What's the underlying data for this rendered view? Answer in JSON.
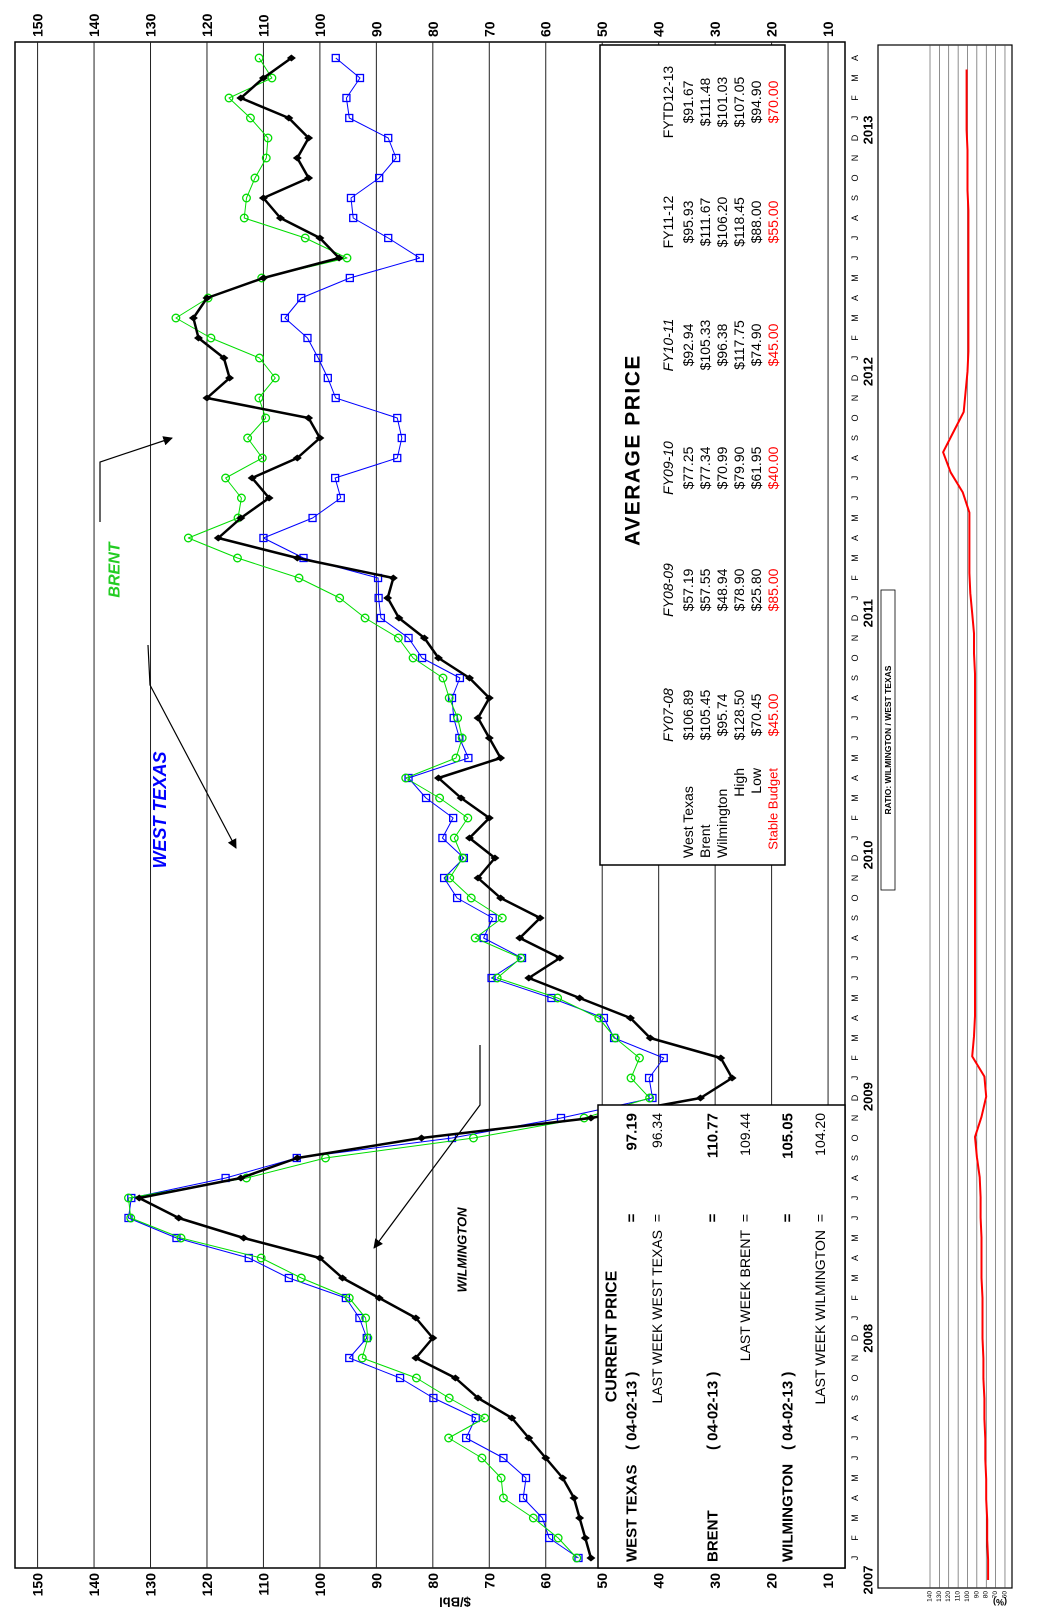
{
  "chart_data": [
    {
      "type": "line",
      "y_label": "$/Bbl",
      "categories": [
        "J",
        "F",
        "M",
        "A",
        "M",
        "J",
        "J",
        "A",
        "S",
        "O",
        "N",
        "D",
        "J",
        "F",
        "M",
        "A",
        "M",
        "J",
        "J",
        "A",
        "S",
        "O",
        "N",
        "D",
        "J",
        "F",
        "M",
        "A",
        "M",
        "J",
        "J",
        "A",
        "S",
        "O",
        "N",
        "D",
        "J",
        "F",
        "M",
        "A",
        "M",
        "J",
        "J",
        "A",
        "S",
        "O",
        "N",
        "D",
        "J",
        "F",
        "M",
        "A",
        "M",
        "J",
        "J",
        "A",
        "S",
        "O",
        "N",
        "D",
        "J",
        "F",
        "M",
        "A",
        "M",
        "J",
        "J",
        "A",
        "S",
        "O",
        "N",
        "D",
        "J",
        "F",
        "M",
        "A"
      ],
      "ylim": [
        7,
        154
      ],
      "yticks": [
        10,
        20,
        30,
        40,
        50,
        60,
        70,
        80,
        90,
        100,
        110,
        120,
        130,
        140,
        150
      ],
      "grid": true,
      "series": [
        {
          "name": "WEST TEXAS",
          "color": "#0000ff",
          "marker": "square",
          "values": [
            54.2,
            59.4,
            60.6,
            64.0,
            63.5,
            67.5,
            74.1,
            72.4,
            79.9,
            85.8,
            94.8,
            91.7,
            93.0,
            95.4,
            105.5,
            112.6,
            125.4,
            133.9,
            133.4,
            116.7,
            104.1,
            76.6,
            57.3,
            41.1,
            41.7,
            39.1,
            47.9,
            49.7,
            59.0,
            69.6,
            64.2,
            71.0,
            69.4,
            75.7,
            78.0,
            74.5,
            78.3,
            76.4,
            81.2,
            84.3,
            73.7,
            75.3,
            76.3,
            76.6,
            75.2,
            81.9,
            84.3,
            89.2,
            89.6,
            89.7,
            102.9,
            110.0,
            101.3,
            96.3,
            97.3,
            86.3,
            85.5,
            86.3,
            97.2,
            98.6,
            100.3,
            102.2,
            106.2,
            103.3,
            94.7,
            82.3,
            87.9,
            94.1,
            94.5,
            89.5,
            86.5,
            87.9,
            94.8,
            95.3,
            92.9,
            97.19
          ]
        },
        {
          "name": "BRENT",
          "color": "#00dd00",
          "marker": "circle",
          "values": [
            54.5,
            57.8,
            62.2,
            67.5,
            67.9,
            71.3,
            77.2,
            70.8,
            77.1,
            82.9,
            92.5,
            91.5,
            91.9,
            94.8,
            103.3,
            110.4,
            124.6,
            133.5,
            133.9,
            113.0,
            99.0,
            72.8,
            53.2,
            41.6,
            44.9,
            43.4,
            47.7,
            50.6,
            57.9,
            68.6,
            64.4,
            72.5,
            67.7,
            73.2,
            77.0,
            74.7,
            76.2,
            73.8,
            78.8,
            84.8,
            75.9,
            74.8,
            75.6,
            77.1,
            78.2,
            83.5,
            86.1,
            92.0,
            96.5,
            103.7,
            114.6,
            123.3,
            114.5,
            113.9,
            116.7,
            110.2,
            112.8,
            109.6,
            110.8,
            107.9,
            110.7,
            119.3,
            125.5,
            119.8,
            110.3,
            95.2,
            102.6,
            113.4,
            113.0,
            111.5,
            109.5,
            109.2,
            112.3,
            116.1,
            108.5,
            110.77
          ]
        },
        {
          "name": "WILMINGTON",
          "color": "#000000",
          "marker": "diamond",
          "values": [
            52,
            53,
            54,
            55,
            57,
            60,
            63,
            66,
            72,
            76,
            83,
            80,
            83,
            89.5,
            96,
            100,
            113.5,
            125,
            132,
            114,
            104,
            82,
            52,
            32.6,
            27,
            29,
            41.5,
            45,
            54,
            63,
            57.5,
            64.6,
            61,
            68,
            72,
            69,
            73.5,
            70,
            75,
            79,
            68,
            70,
            72,
            70,
            73.5,
            79,
            81.5,
            86,
            88,
            87,
            104,
            118,
            114,
            109,
            112,
            104,
            100,
            102,
            120,
            116,
            117,
            121.5,
            122.4,
            120,
            110,
            96.6,
            100,
            107,
            110,
            102,
            104,
            102,
            105.5,
            114,
            110,
            105.05
          ]
        }
      ]
    },
    {
      "type": "line",
      "title": "RATIO: WILMINGTON / WEST TEXAS",
      "y_label": "(%)",
      "categories": [
        "2007",
        null,
        null,
        null,
        null,
        null,
        null,
        null,
        null,
        null,
        null,
        null,
        "2008",
        null,
        null,
        null,
        null,
        null,
        null,
        null,
        null,
        null,
        null,
        null,
        "2009",
        null,
        null,
        null,
        null,
        null,
        null,
        null,
        null,
        null,
        null,
        null,
        "2010",
        null,
        null,
        null,
        null,
        null,
        null,
        null,
        null,
        null,
        null,
        null,
        "2011",
        null,
        null,
        null,
        null,
        null,
        null,
        null,
        null,
        null,
        null,
        null,
        "2012",
        null,
        null,
        null,
        null,
        null,
        null,
        null,
        null,
        null,
        null,
        null,
        "2013",
        null,
        null,
        null
      ],
      "ylim": [
        52.5,
        195.5
      ],
      "yticks": [
        60,
        70,
        80,
        90,
        100,
        110,
        120,
        130,
        140
      ],
      "grid": true,
      "series": [
        {
          "color": "#ff0000",
          "values": [
            78,
            78,
            79,
            79,
            80,
            80,
            81,
            81,
            82,
            82,
            83,
            83,
            84,
            84,
            84,
            85,
            85,
            85,
            86,
            86,
            87,
            90,
            92,
            85,
            80,
            82,
            95,
            93,
            92,
            92,
            92,
            92,
            92,
            92,
            92,
            92,
            92,
            92,
            92,
            92,
            92,
            92,
            92,
            92,
            92,
            92,
            93,
            93,
            95,
            97,
            98,
            98,
            98,
            98,
            105,
            118,
            126,
            115,
            104,
            102,
            100,
            99,
            99,
            99,
            99,
            99,
            99,
            99,
            99,
            100,
            100,
            100,
            101,
            101,
            101,
            101
          ]
        }
      ]
    }
  ],
  "current_price": {
    "title": "CURRENT PRICE",
    "rows": [
      [
        "WEST TEXAS",
        "( 04-02-13 )",
        "=",
        "97.19"
      ],
      [
        "LAST WEEK WEST TEXAS",
        "=",
        "96.34"
      ],
      [
        "BRENT",
        "( 04-02-13 )",
        "=",
        "110.77"
      ],
      [
        "LAST WEEK BRENT",
        "=",
        "109.44"
      ],
      [
        "WILMINGTON",
        "( 04-02-13 )",
        "=",
        "105.05"
      ],
      [
        "LAST WEEK WILMINGTON",
        "=",
        "104.20"
      ]
    ]
  },
  "average_price": {
    "title": "AVERAGE PRICE",
    "columns": [
      "FY07-08",
      "FY08-09",
      "FY09-10",
      "FY10-11",
      "FY11-12",
      "FYTD12-13"
    ],
    "rows": [
      {
        "label": "West Texas",
        "values": [
          "$106.89",
          "$57.19",
          "$77.25",
          "$92.94",
          "$95.93",
          "$91.67"
        ]
      },
      {
        "label": "Brent",
        "values": [
          "$105.45",
          "$57.55",
          "$77.34",
          "$105.33",
          "$111.67",
          "$111.48"
        ]
      },
      {
        "label": "Wilmington",
        "values": [
          "$95.74",
          "$48.94",
          "$70.99",
          "$96.38",
          "$106.20",
          "$101.03"
        ]
      },
      {
        "label": "High",
        "values": [
          "$128.50",
          "$78.90",
          "$79.90",
          "$117.75",
          "$118.45",
          "$107.05"
        ]
      },
      {
        "label": "Low",
        "values": [
          "$70.45",
          "$25.80",
          "$61.95",
          "$74.90",
          "$88.00",
          "$94.90"
        ]
      },
      {
        "label": "Stable Budget",
        "values": [
          "$45.00",
          "$85.00",
          "$40.00",
          "$45.00",
          "$55.00",
          "$70.00"
        ]
      }
    ]
  }
}
